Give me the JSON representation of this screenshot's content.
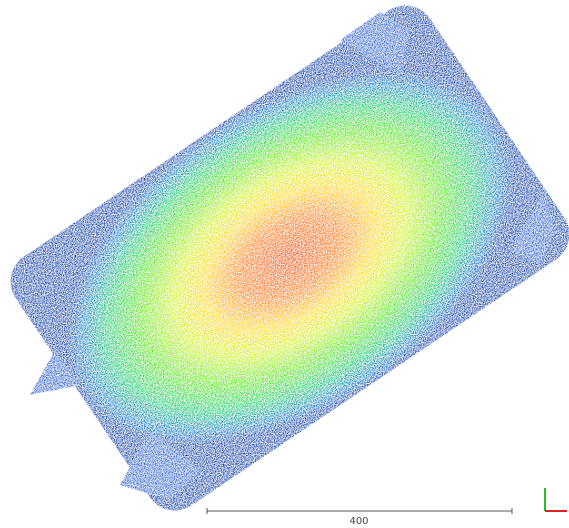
{
  "scale_bar": {
    "label": "400"
  }
}
